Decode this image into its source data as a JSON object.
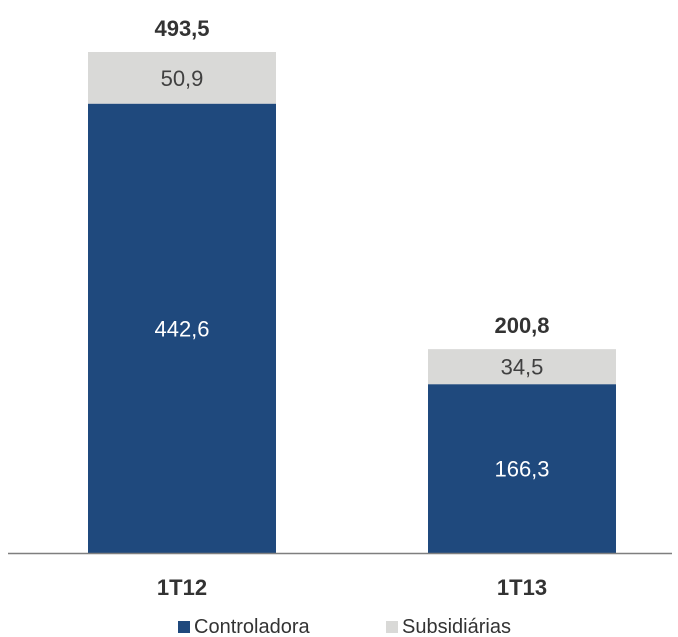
{
  "chart_data": {
    "type": "bar",
    "stacked": true,
    "categories": [
      "1T12",
      "1T13"
    ],
    "series": [
      {
        "name": "Controladora",
        "values": [
          442.6,
          166.3
        ],
        "labels": [
          "442,6",
          "166,3"
        ],
        "color": "#1f497d",
        "label_color": "#ffffff"
      },
      {
        "name": "Subsidiárias",
        "values": [
          50.9,
          34.5
        ],
        "labels": [
          "50,9",
          "34,5"
        ],
        "color": "#d9d9d7",
        "label_color": "#404040"
      }
    ],
    "totals": {
      "values": [
        493.5,
        200.8
      ],
      "labels": [
        "493,5",
        "200,8"
      ]
    },
    "title": "",
    "xlabel": "",
    "ylabel": "",
    "ylim": [
      0,
      493.5
    ],
    "grid": false,
    "legend_position": "bottom",
    "axis_color": "#7f7f7f"
  }
}
